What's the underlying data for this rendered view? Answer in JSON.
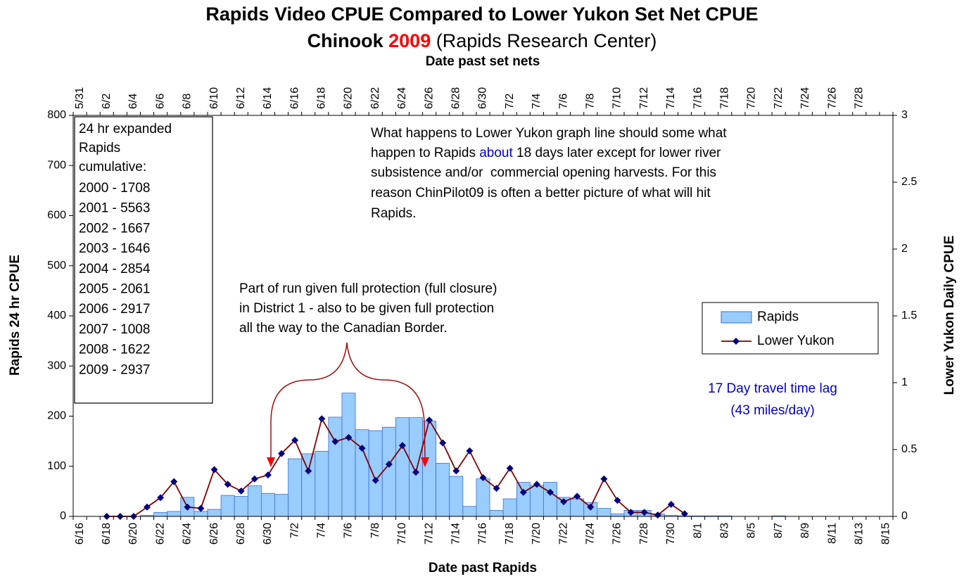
{
  "chart_data": {
    "type": "combo",
    "title": "Rapids Video CPUE Compared to Lower Yukon Set Net CPUE",
    "subtitle": "Chinook",
    "subtitle_year": "2009",
    "subtitle_note": "(Rapids Research Center)",
    "x_label": "Date past Rapids",
    "x2_label": "Date past set nets",
    "y_label": "Rapids 24 hr CPUE",
    "y2_label": "Lower Yukon Daily CPUE",
    "categories": [
      "6/16",
      null,
      "6/18",
      null,
      "6/20",
      null,
      "6/22",
      null,
      "6/24",
      null,
      "6/26",
      null,
      "6/28",
      null,
      "6/30",
      null,
      "7/2",
      null,
      "7/4",
      null,
      "7/6",
      null,
      "7/8",
      null,
      "7/10",
      null,
      "7/12",
      null,
      "7/14",
      null,
      "7/16",
      null,
      "7/18",
      null,
      "7/20",
      null,
      "7/22",
      null,
      "7/24",
      null,
      "7/26",
      null,
      "7/28",
      null,
      "7/30",
      null,
      "8/1",
      null,
      "8/3",
      null,
      "8/5",
      null,
      "8/7",
      null,
      "8/9",
      null,
      "8/11",
      null,
      "8/13",
      null,
      "8/15"
    ],
    "x2_categories": [
      "5/31",
      null,
      "6/2",
      null,
      "6/4",
      null,
      "6/6",
      null,
      "6/8",
      null,
      "6/10",
      null,
      "6/12",
      null,
      "6/14",
      null,
      "6/16",
      null,
      "6/18",
      null,
      "6/20",
      null,
      "6/22",
      null,
      "6/24",
      null,
      "6/26",
      null,
      "6/28",
      null,
      "6/30",
      null,
      "7/2",
      null,
      "7/4",
      null,
      "7/6",
      null,
      "7/8",
      null,
      "7/10",
      null,
      "7/12",
      null,
      "7/14",
      null,
      "7/16",
      null,
      "7/18",
      null,
      "7/20",
      null,
      "7/22",
      null,
      "7/24",
      null,
      "7/26",
      null,
      "7/28",
      null,
      null
    ],
    "series": [
      {
        "name": "Rapids",
        "type": "bar",
        "color": "#99ccff",
        "values": [
          0,
          0,
          0,
          0,
          0,
          2,
          8,
          10,
          38,
          10,
          14,
          42,
          40,
          61,
          46,
          44,
          115,
          125,
          130,
          198,
          246,
          173,
          171,
          178,
          197,
          197,
          190,
          106,
          80,
          20,
          75,
          12,
          35,
          68,
          62,
          68,
          38,
          35,
          28,
          16,
          5,
          12,
          12,
          5,
          2,
          1,
          1,
          1,
          1,
          0,
          0,
          0,
          1,
          0,
          0,
          0,
          0,
          0,
          0,
          0,
          0
        ]
      },
      {
        "name": "Lower Yukon",
        "type": "line",
        "axis": "y2",
        "color": "#800000",
        "marker_color": "#000080",
        "values": [
          null,
          null,
          0,
          0,
          0,
          0.07,
          0.14,
          0.26,
          0.07,
          0.06,
          0.35,
          0.24,
          0.19,
          0.28,
          0.31,
          0.47,
          0.57,
          0.34,
          0.73,
          0.56,
          0.59,
          0.51,
          0.27,
          0.39,
          0.53,
          0.33,
          0.72,
          0.55,
          0.34,
          0.49,
          0.29,
          0.21,
          0.36,
          0.18,
          0.24,
          0.18,
          0.11,
          0.15,
          0.07,
          0.28,
          0.12,
          0.03,
          0.03,
          0.01,
          0.09,
          0.02,
          null,
          null,
          null,
          null,
          null,
          null,
          null,
          null,
          null,
          null,
          null,
          null,
          null,
          null,
          null
        ]
      }
    ],
    "ylim": [
      0,
      800
    ],
    "yticks": [
      0,
      100,
      200,
      300,
      400,
      500,
      600,
      700,
      800
    ],
    "y2lim": [
      0,
      3
    ],
    "y2ticks": [
      0,
      0.5,
      1,
      1.5,
      2,
      2.5,
      3
    ],
    "grid": false,
    "legend": "right",
    "cumulative_box": [
      "24 hr expanded",
      "Rapids",
      "cumulative:",
      "2000 - 1708",
      "2001 - 5563",
      "2002 - 1667",
      "2003 - 1646",
      "2004 - 2854",
      "2005 - 2061",
      "2006 - 2917",
      "2007 - 1008",
      "2008 - 1622",
      "2009 - 2937"
    ],
    "note_lines": [
      "What happens to Lower Yukon graph line should some what",
      "happen to Rapids ",
      "about",
      " 18 days later except for lower river",
      "subsistence and/or  commercial opening harvests. For this",
      "reason ChinPilot09 is often a better picture of what will hit",
      "Rapids."
    ],
    "protection_note": [
      "Part of run given full protection (full closure)",
      "in District 1 - also to be given full protection",
      "all the way to the Canadian Border."
    ],
    "lag_note": [
      "17 Day travel time lag",
      "(43 miles/day)"
    ]
  }
}
